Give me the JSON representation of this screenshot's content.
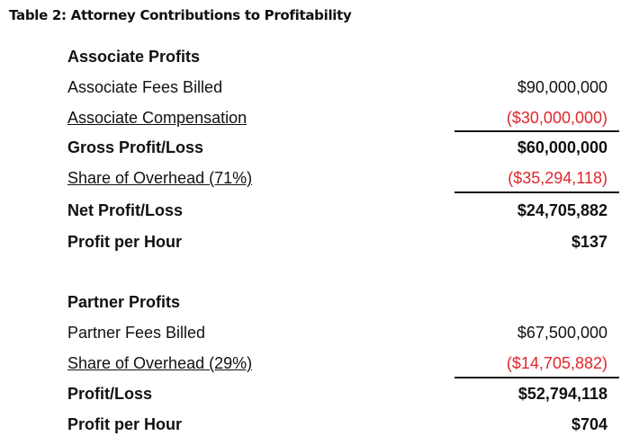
{
  "title": "Table 2: Attorney Contributions to Profitability",
  "associate": {
    "heading": "Associate Profits",
    "rows": [
      {
        "label": "Associate Fees Billed",
        "value": "$90,000,000"
      },
      {
        "label": "Associate Compensation",
        "value": "($30,000,000)"
      },
      {
        "label": "Gross Profit/Loss",
        "value": "$60,000,000"
      },
      {
        "label": "Share of Overhead (71%)",
        "value": "($35,294,118)"
      },
      {
        "label": "Net Profit/Loss",
        "value": "$24,705,882"
      },
      {
        "label": "Profit per Hour",
        "value": "$137"
      }
    ]
  },
  "partner": {
    "heading": "Partner Profits",
    "rows": [
      {
        "label": "Partner Fees Billed",
        "value": "$67,500,000"
      },
      {
        "label": "Share of Overhead (29%)",
        "value": "($14,705,882)"
      },
      {
        "label": "Profit/Loss",
        "value": "$52,794,118"
      },
      {
        "label": "Profit per Hour",
        "value": "$704"
      }
    ]
  },
  "colors": {
    "negative": "#e0262b",
    "text": "#111111"
  }
}
